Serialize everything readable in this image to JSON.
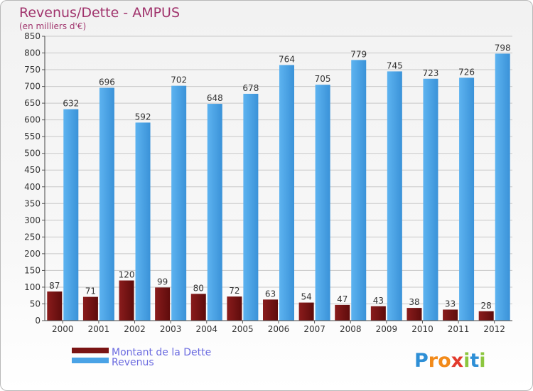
{
  "chart_data": {
    "type": "bar",
    "title": "Revenus/Dette - AMPUS",
    "subtitle": "(en milliers d'€)",
    "categories": [
      "2000",
      "2001",
      "2002",
      "2003",
      "2004",
      "2005",
      "2006",
      "2007",
      "2008",
      "2009",
      "2010",
      "2011",
      "2012"
    ],
    "series": [
      {
        "name": "Montant de la Dette",
        "color": "#7a1414",
        "values": [
          87,
          71,
          120,
          99,
          80,
          72,
          63,
          54,
          47,
          43,
          38,
          33,
          28
        ]
      },
      {
        "name": "Revenus",
        "color": "#4aa3e6",
        "values": [
          632,
          696,
          592,
          702,
          648,
          678,
          764,
          705,
          779,
          745,
          723,
          726,
          798
        ]
      }
    ],
    "ylim": [
      0,
      850
    ],
    "yticks": [
      0,
      50,
      100,
      150,
      200,
      250,
      300,
      350,
      400,
      450,
      500,
      550,
      600,
      650,
      700,
      750,
      800,
      850
    ],
    "grid": true,
    "legend": "bottom-left"
  },
  "brand": {
    "letters": [
      "P",
      "r",
      "o",
      "x",
      "i",
      "t",
      "i"
    ],
    "colors": [
      "#2e8fd6",
      "#f28a1a",
      "#f28a1a",
      "#e23a2c",
      "#8cc63f",
      "#2e8fd6",
      "#8cc63f"
    ]
  }
}
